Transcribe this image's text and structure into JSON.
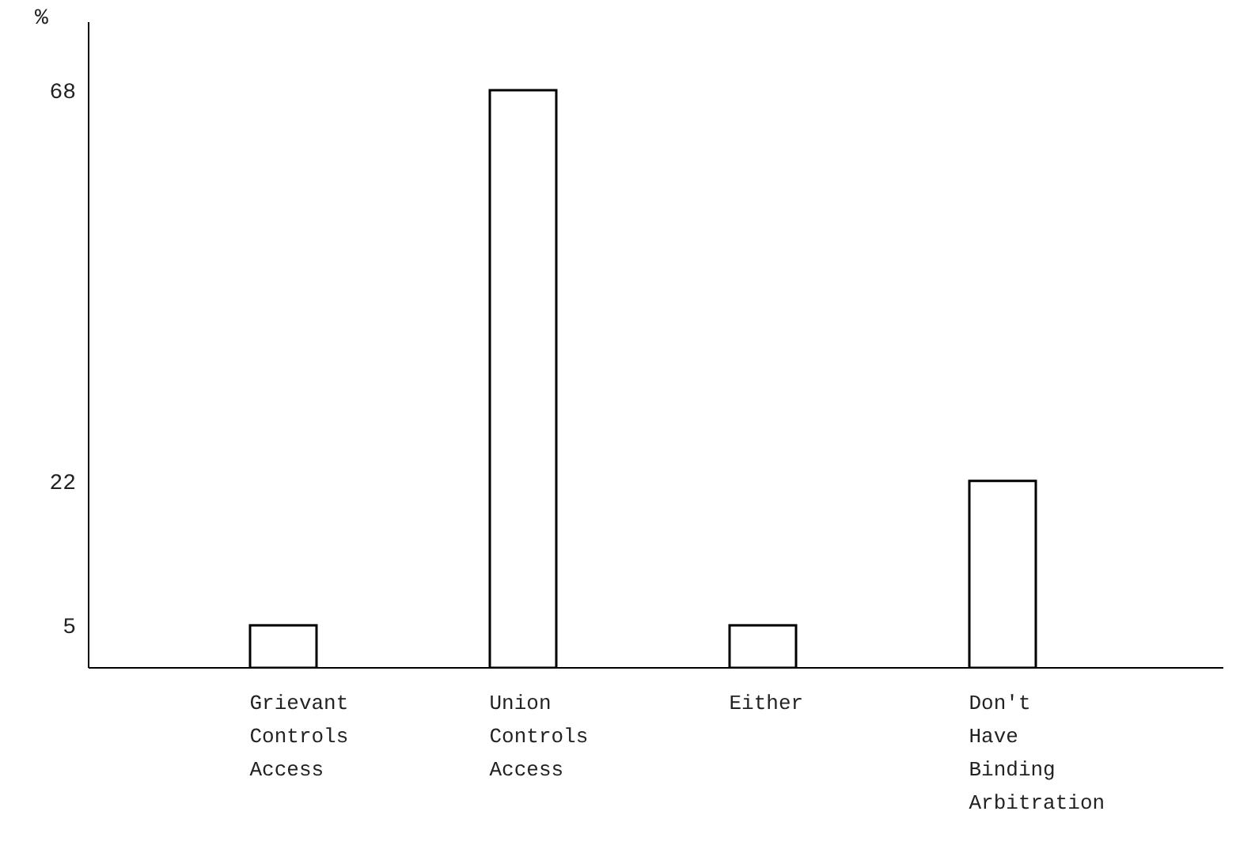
{
  "chart_data": {
    "type": "bar",
    "ylabel": "%",
    "categories": [
      "Grievant Controls Access",
      "Union Controls Access",
      "Either",
      "Don't Have Binding Arbitration"
    ],
    "values": [
      5,
      68,
      5,
      22
    ],
    "color": "#000000",
    "ylim": [
      0,
      76
    ],
    "yticks": [
      5,
      22,
      68
    ],
    "grid": false,
    "legend": false
  }
}
